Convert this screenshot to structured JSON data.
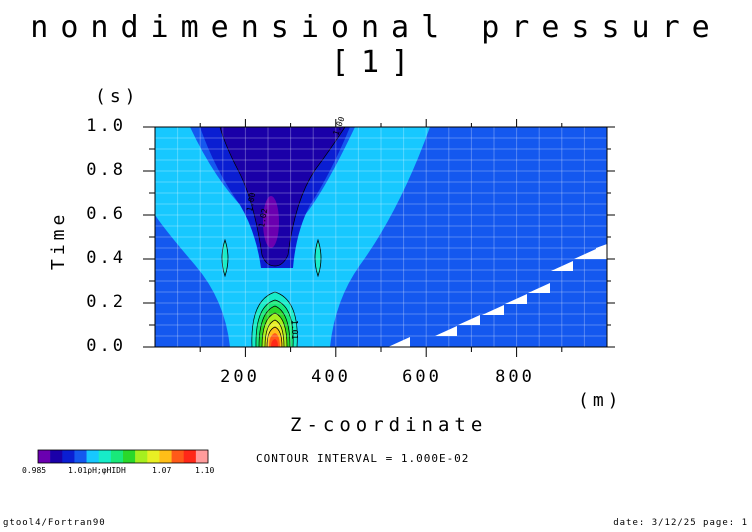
{
  "chart_data": {
    "type": "heatmap",
    "title": "nondimensional pressure [1]",
    "xlabel": "Z-coordinate",
    "ylabel": "Time",
    "x_unit": "(m)",
    "y_unit": "(s)",
    "xlim": [
      0,
      1000
    ],
    "ylim": [
      0.0,
      1.0
    ],
    "x_ticks": [
      "200",
      "400",
      "600",
      "800"
    ],
    "y_ticks": [
      "0.0",
      "0.2",
      "0.4",
      "0.6",
      "0.8",
      "1.0"
    ],
    "x_tick_values": [
      200,
      400,
      600,
      800
    ],
    "y_tick_values": [
      0.0,
      0.2,
      0.4,
      0.6,
      0.8,
      1.0
    ],
    "grid": true,
    "contour_interval_text": "CONTOUR INTERVAL = 1.000E-02",
    "contour_labels": [
      "1.00",
      "1.00",
      "1.01",
      "1.02"
    ],
    "colorbar": {
      "colors": [
        "#6a00b0",
        "#1a00a8",
        "#0a1ed2",
        "#1458ef",
        "#17c8ff",
        "#17ecc8",
        "#19e87a",
        "#2ad82a",
        "#a6ef1f",
        "#e8ef24",
        "#ffbe18",
        "#ff5a19",
        "#ff2818",
        "#ff9c9c"
      ],
      "labels": [
        "0.985",
        "1.01ρH;φHIDH",
        "1.07",
        "1.10"
      ],
      "min": 0.985,
      "max": 1.1
    }
  },
  "footer": {
    "left": "gtool4/Fortran90",
    "right": "date: 3/12/25 page: 1"
  }
}
